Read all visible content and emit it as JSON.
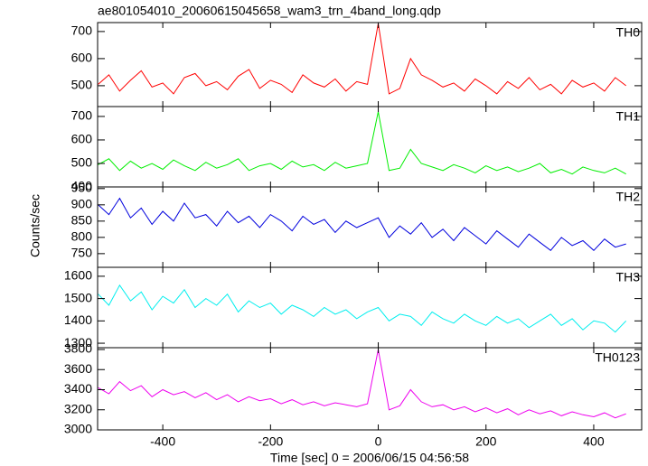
{
  "title": "ae801054010_20060615045658_wam3_trn_4band_long.qdp",
  "xlabel": "Time [sec] 0 = 2006/06/15 04:56:58",
  "ylabel": "Counts/sec",
  "xlim": [
    -521,
    489
  ],
  "xticks": [
    -400,
    -200,
    0,
    200,
    400
  ],
  "x": [
    -520,
    -500,
    -480,
    -460,
    -440,
    -420,
    -400,
    -380,
    -360,
    -340,
    -320,
    -300,
    -280,
    -260,
    -240,
    -220,
    -200,
    -180,
    -160,
    -140,
    -120,
    -100,
    -80,
    -60,
    -40,
    -20,
    0,
    20,
    40,
    60,
    80,
    100,
    120,
    140,
    160,
    180,
    200,
    220,
    240,
    260,
    280,
    300,
    320,
    340,
    360,
    380,
    400,
    420,
    440,
    460
  ],
  "chart_data": [
    {
      "type": "line",
      "label": "TH0",
      "ylim": [
        423,
        733
      ],
      "yticks": [
        500,
        600,
        700
      ],
      "series": [
        {
          "color": "#ff0000",
          "values": [
            505,
            540,
            480,
            520,
            555,
            495,
            510,
            470,
            530,
            545,
            500,
            515,
            485,
            535,
            560,
            490,
            520,
            505,
            475,
            540,
            510,
            495,
            525,
            480,
            515,
            505,
            730,
            470,
            490,
            600,
            540,
            520,
            495,
            510,
            480,
            525,
            500,
            470,
            515,
            490,
            530,
            485,
            505,
            470,
            520,
            495,
            510,
            480,
            530,
            500
          ]
        }
      ]
    },
    {
      "type": "line",
      "label": "TH1",
      "ylim": [
        400,
        742
      ],
      "yticks": [
        400,
        500,
        600,
        700
      ],
      "series": [
        {
          "color": "#00ee00",
          "values": [
            495,
            520,
            470,
            510,
            480,
            500,
            475,
            515,
            490,
            470,
            505,
            480,
            495,
            520,
            470,
            490,
            500,
            475,
            510,
            485,
            495,
            470,
            505,
            480,
            490,
            500,
            720,
            470,
            480,
            560,
            500,
            485,
            470,
            495,
            480,
            460,
            490,
            470,
            485,
            465,
            480,
            500,
            460,
            475,
            455,
            485,
            470,
            460,
            480,
            455
          ]
        }
      ]
    },
    {
      "type": "line",
      "label": "TH2",
      "ylim": [
        708,
        955
      ],
      "yticks": [
        750,
        800,
        850,
        900,
        950
      ],
      "series": [
        {
          "color": "#0000dd",
          "values": [
            900,
            870,
            920,
            860,
            890,
            840,
            880,
            850,
            905,
            860,
            870,
            835,
            880,
            845,
            865,
            830,
            870,
            850,
            820,
            865,
            840,
            855,
            815,
            850,
            830,
            845,
            860,
            800,
            835,
            810,
            845,
            800,
            825,
            790,
            830,
            805,
            780,
            820,
            795,
            770,
            810,
            785,
            760,
            800,
            775,
            790,
            760,
            795,
            770,
            780
          ]
        }
      ]
    },
    {
      "type": "line",
      "label": "TH3",
      "ylim": [
        1280,
        1640
      ],
      "yticks": [
        1300,
        1400,
        1500,
        1600
      ],
      "series": [
        {
          "color": "#00eeee",
          "values": [
            1520,
            1470,
            1560,
            1490,
            1530,
            1450,
            1510,
            1480,
            1540,
            1460,
            1500,
            1470,
            1520,
            1440,
            1490,
            1460,
            1480,
            1430,
            1470,
            1450,
            1420,
            1460,
            1430,
            1450,
            1410,
            1440,
            1460,
            1400,
            1430,
            1420,
            1380,
            1440,
            1410,
            1390,
            1430,
            1400,
            1380,
            1420,
            1390,
            1410,
            1370,
            1400,
            1430,
            1380,
            1410,
            1360,
            1400,
            1390,
            1350,
            1400
          ]
        }
      ]
    },
    {
      "type": "line",
      "label": "TH0123",
      "ylim": [
        3000,
        3818
      ],
      "yticks": [
        3000,
        3200,
        3400,
        3600,
        3800
      ],
      "series": [
        {
          "color": "#ee00ee",
          "values": [
            3420,
            3360,
            3480,
            3390,
            3440,
            3330,
            3400,
            3350,
            3380,
            3320,
            3370,
            3300,
            3350,
            3280,
            3330,
            3290,
            3310,
            3260,
            3300,
            3250,
            3280,
            3240,
            3270,
            3250,
            3230,
            3260,
            3800,
            3200,
            3240,
            3400,
            3280,
            3230,
            3250,
            3200,
            3230,
            3180,
            3220,
            3170,
            3210,
            3150,
            3200,
            3160,
            3190,
            3140,
            3180,
            3150,
            3130,
            3170,
            3120,
            3160
          ]
        }
      ]
    }
  ]
}
